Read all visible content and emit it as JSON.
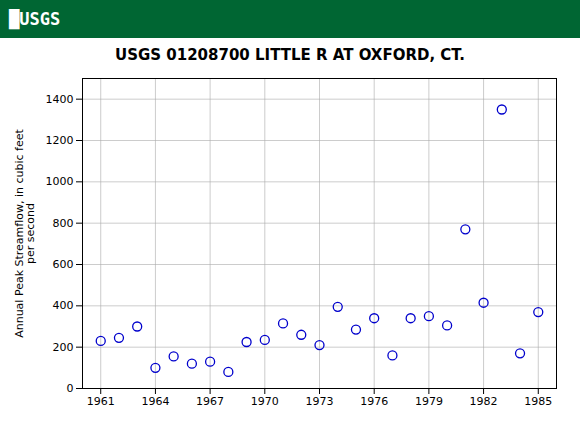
{
  "chart_data": {
    "type": "scatter",
    "title": "USGS 01208700 LITTLE R AT OXFORD, CT.",
    "ylabel": "Annual Peak Streamflow, in cubic feet\nper second",
    "annotations": [
      "█USGS"
    ],
    "x": [
      1961,
      1962,
      1963,
      1964,
      1965,
      1966,
      1967,
      1968,
      1969,
      1970,
      1971,
      1972,
      1973,
      1974,
      1975,
      1976,
      1977,
      1978,
      1979,
      1980,
      1981,
      1982,
      1983,
      1984,
      1985
    ],
    "values": [
      230,
      245,
      300,
      100,
      155,
      120,
      130,
      80,
      225,
      235,
      315,
      260,
      210,
      395,
      285,
      340,
      160,
      340,
      350,
      305,
      770,
      415,
      1350,
      170,
      370
    ],
    "color": "#0000CC",
    "marker": "circle",
    "xlim": [
      1960,
      1986
    ],
    "xticks": [
      1961,
      1964,
      1967,
      1970,
      1973,
      1976,
      1979,
      1982,
      1985
    ],
    "ylim": [
      0,
      1500
    ],
    "yticks": [
      0,
      200,
      400,
      600,
      800,
      1000,
      1200,
      1400
    ],
    "grid": true
  }
}
